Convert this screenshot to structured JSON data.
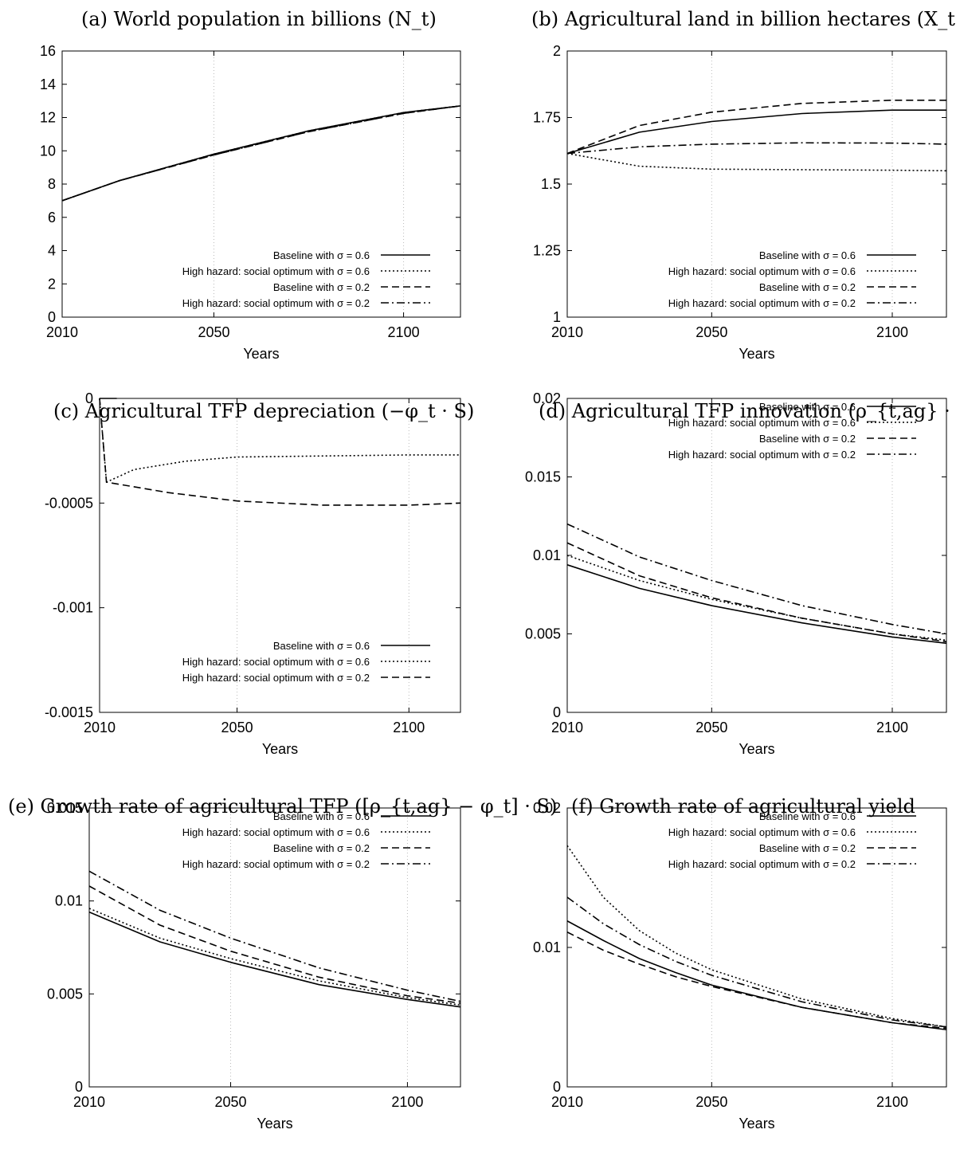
{
  "chart_data": [
    {
      "id": "a",
      "type": "line",
      "title": "(a) World population in billions (N_t)",
      "xlabel": "Years",
      "ylabel": "",
      "xlim": [
        2010,
        2115
      ],
      "ylim": [
        0,
        16
      ],
      "xticks": [
        2010,
        2050,
        2100
      ],
      "yticks": [
        0,
        2,
        4,
        6,
        8,
        10,
        12,
        14,
        16
      ],
      "ytick_labels": [
        "0",
        "2",
        "4",
        "6",
        "8",
        "10",
        "12",
        "14",
        "16"
      ],
      "grid": "dotted at x ticks",
      "legend_position": "bottom-right",
      "x": [
        2010,
        2025,
        2050,
        2075,
        2100,
        2115
      ],
      "series": [
        {
          "name": "Baseline with σ = 0.6",
          "style": "solid",
          "values": [
            7.0,
            8.2,
            9.8,
            11.2,
            12.3,
            12.7
          ]
        },
        {
          "name": "High hazard: social optimum with σ = 0.6",
          "style": "dotted",
          "values": [
            7.0,
            8.2,
            9.8,
            11.2,
            12.3,
            12.7
          ]
        },
        {
          "name": "Baseline with σ = 0.2",
          "style": "dashed",
          "values": [
            7.0,
            8.2,
            9.75,
            11.15,
            12.25,
            12.7
          ]
        },
        {
          "name": "High hazard: social optimum with σ = 0.2",
          "style": "dashdot",
          "values": [
            7.0,
            8.2,
            9.75,
            11.15,
            12.25,
            12.7
          ]
        }
      ]
    },
    {
      "id": "b",
      "type": "line",
      "title": "(b) Agricultural land in billion hectares (X_t)",
      "xlabel": "Years",
      "ylabel": "",
      "xlim": [
        2010,
        2115
      ],
      "ylim": [
        1,
        2
      ],
      "xticks": [
        2010,
        2050,
        2100
      ],
      "yticks": [
        1,
        1.25,
        1.5,
        1.75,
        2
      ],
      "ytick_labels": [
        "1",
        "1.25",
        "1.5",
        "1.75",
        "2"
      ],
      "grid": "dotted at x ticks",
      "legend_position": "bottom-right",
      "x": [
        2010,
        2030,
        2050,
        2075,
        2100,
        2115
      ],
      "series": [
        {
          "name": "Baseline with σ = 0.6",
          "style": "solid",
          "values": [
            1.615,
            1.695,
            1.735,
            1.765,
            1.778,
            1.778
          ]
        },
        {
          "name": "High hazard: social optimum with σ = 0.6",
          "style": "dotted",
          "values": [
            1.615,
            1.567,
            1.556,
            1.554,
            1.552,
            1.55
          ]
        },
        {
          "name": "Baseline with σ = 0.2",
          "style": "dashed",
          "values": [
            1.615,
            1.72,
            1.77,
            1.803,
            1.815,
            1.815
          ]
        },
        {
          "name": "High hazard: social optimum with σ = 0.2",
          "style": "dashdot",
          "values": [
            1.615,
            1.64,
            1.65,
            1.655,
            1.654,
            1.65
          ]
        }
      ]
    },
    {
      "id": "c",
      "type": "line",
      "title": "(c) Agricultural TFP depreciation (−φ_t · S)",
      "xlabel": "Years",
      "ylabel": "",
      "xlim": [
        2010,
        2115
      ],
      "ylim": [
        -0.0015,
        0
      ],
      "xticks": [
        2010,
        2050,
        2100
      ],
      "yticks": [
        -0.0015,
        -0.001,
        -0.0005,
        0
      ],
      "ytick_labels": [
        "-0.0015",
        "-0.001",
        "-0.0005",
        "0"
      ],
      "grid": "dotted at x ticks",
      "legend_position": "bottom-right",
      "series": [
        {
          "name": "Baseline with σ = 0.6",
          "style": "solid",
          "x": [
            2010,
            2015
          ],
          "values": [
            0,
            0
          ]
        },
        {
          "name": "High hazard: social optimum with σ = 0.6",
          "style": "dotted",
          "x": [
            2010,
            2012,
            2020,
            2035,
            2050,
            2075,
            2100,
            2115
          ],
          "values": [
            0,
            -0.0004,
            -0.00034,
            -0.0003,
            -0.00028,
            -0.000275,
            -0.00027,
            -0.00027
          ]
        },
        {
          "name": "High hazard: social optimum with σ = 0.2",
          "style": "dashed",
          "x": [
            2010,
            2012,
            2030,
            2050,
            2075,
            2100,
            2115
          ],
          "values": [
            0,
            -0.0004,
            -0.00045,
            -0.00049,
            -0.00051,
            -0.00051,
            -0.0005
          ]
        }
      ]
    },
    {
      "id": "d",
      "type": "line",
      "title": "(d) Agricultural TFP innovation (ρ_{t,ag} · S)",
      "xlabel": "Years",
      "ylabel": "",
      "xlim": [
        2010,
        2115
      ],
      "ylim": [
        0,
        0.02
      ],
      "xticks": [
        2010,
        2050,
        2100
      ],
      "yticks": [
        0,
        0.005,
        0.01,
        0.015,
        0.02
      ],
      "ytick_labels": [
        "0",
        "0.005",
        "0.01",
        "0.015",
        "0.02"
      ],
      "grid": "dotted at x ticks",
      "legend_position": "top-right",
      "x": [
        2010,
        2030,
        2050,
        2075,
        2100,
        2115
      ],
      "series": [
        {
          "name": "Baseline with σ = 0.6",
          "style": "solid",
          "values": [
            0.0094,
            0.0079,
            0.0068,
            0.0057,
            0.0048,
            0.0044
          ]
        },
        {
          "name": "High hazard: social optimum with σ = 0.6",
          "style": "dotted",
          "values": [
            0.01,
            0.0084,
            0.0072,
            0.006,
            0.005,
            0.0046
          ]
        },
        {
          "name": "Baseline with σ = 0.2",
          "style": "dashed",
          "values": [
            0.0108,
            0.0087,
            0.0073,
            0.006,
            0.005,
            0.0045
          ]
        },
        {
          "name": "High hazard: social optimum with σ = 0.2",
          "style": "dashdot",
          "values": [
            0.012,
            0.0099,
            0.0084,
            0.0068,
            0.0056,
            0.005
          ]
        }
      ]
    },
    {
      "id": "e",
      "type": "line",
      "title": "(e) Growth rate of agricultural TFP ([ρ_{t,ag} − φ_t] · S)",
      "xlabel": "Years",
      "ylabel": "",
      "xlim": [
        2010,
        2115
      ],
      "ylim": [
        0,
        0.015
      ],
      "xticks": [
        2010,
        2050,
        2100
      ],
      "yticks": [
        0,
        0.005,
        0.01,
        0.015
      ],
      "ytick_labels": [
        "0",
        "0.005",
        "0.01",
        "0.015"
      ],
      "grid": "dotted at x ticks",
      "legend_position": "top-right",
      "x": [
        2010,
        2030,
        2050,
        2075,
        2100,
        2115
      ],
      "series": [
        {
          "name": "Baseline with σ = 0.6",
          "style": "solid",
          "values": [
            0.0094,
            0.0078,
            0.0067,
            0.0055,
            0.0047,
            0.0043
          ]
        },
        {
          "name": "High hazard: social optimum with σ = 0.6",
          "style": "dotted",
          "values": [
            0.0096,
            0.008,
            0.0069,
            0.0057,
            0.0048,
            0.0044
          ]
        },
        {
          "name": "Baseline with σ = 0.2",
          "style": "dashed",
          "values": [
            0.0108,
            0.0087,
            0.0073,
            0.0059,
            0.0049,
            0.0045
          ]
        },
        {
          "name": "High hazard: social optimum with σ = 0.2",
          "style": "dashdot",
          "values": [
            0.0116,
            0.0095,
            0.008,
            0.0064,
            0.0052,
            0.0046
          ]
        }
      ]
    },
    {
      "id": "f",
      "type": "line",
      "title": "(f) Growth rate of agricultural yield",
      "xlabel": "Years",
      "ylabel": "",
      "xlim": [
        2010,
        2115
      ],
      "ylim": [
        0,
        0.02
      ],
      "xticks": [
        2010,
        2050,
        2100
      ],
      "yticks": [
        0,
        0.01,
        0.02
      ],
      "ytick_labels": [
        "0",
        "0.01",
        "0.02"
      ],
      "grid": "dotted at x ticks",
      "legend_position": "top-right",
      "x": [
        2010,
        2020,
        2030,
        2040,
        2050,
        2075,
        2100,
        2115
      ],
      "series": [
        {
          "name": "Baseline with σ = 0.6",
          "style": "solid",
          "values": [
            0.0119,
            0.0105,
            0.0092,
            0.0082,
            0.0073,
            0.0057,
            0.0046,
            0.0041
          ]
        },
        {
          "name": "High hazard: social optimum with σ = 0.6",
          "style": "dotted",
          "values": [
            0.0173,
            0.0136,
            0.0112,
            0.0096,
            0.0084,
            0.0063,
            0.0049,
            0.0043
          ]
        },
        {
          "name": "Baseline with σ = 0.2",
          "style": "dashed",
          "values": [
            0.0111,
            0.0098,
            0.0088,
            0.0079,
            0.0072,
            0.0057,
            0.0046,
            0.0042
          ]
        },
        {
          "name": "High hazard: social optimum with σ = 0.2",
          "style": "dashdot",
          "values": [
            0.0136,
            0.0117,
            0.0102,
            0.009,
            0.008,
            0.0061,
            0.0048,
            0.0043
          ]
        }
      ]
    }
  ]
}
